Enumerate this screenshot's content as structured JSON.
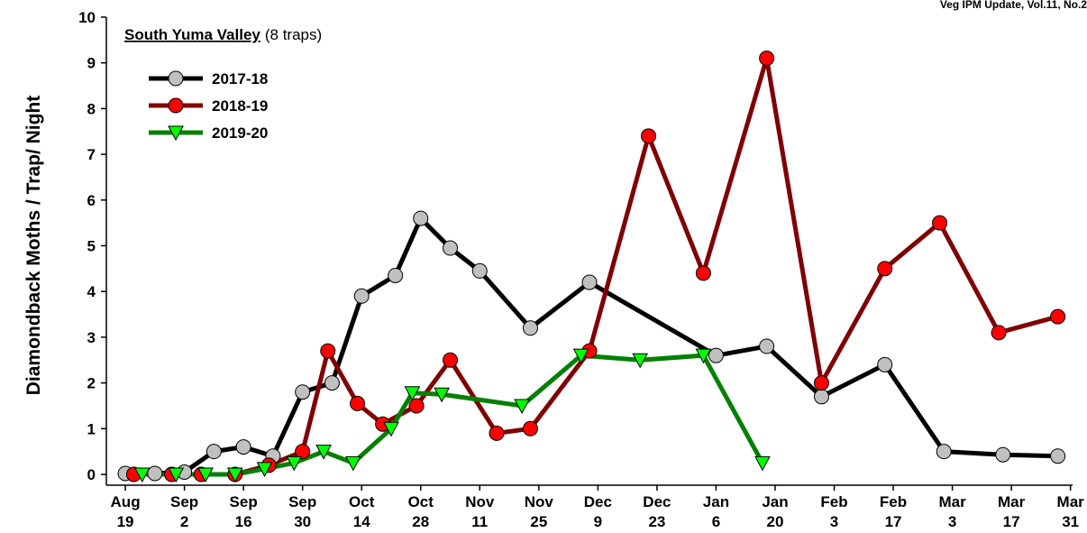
{
  "header": "Veg IPM Update, Vol.11, No.2",
  "chart_data": {
    "type": "line",
    "title": "South Yuma Valley",
    "subtitle": "(8 traps)",
    "y_label": "Diamondback Moths / Trap/ Night",
    "xlim": [
      -4.5,
      224.5
    ],
    "ylim": [
      0,
      10
    ],
    "xticks": [
      {
        "value": 0,
        "label": "Aug 19"
      },
      {
        "value": 14,
        "label": "Sep 2"
      },
      {
        "value": 28,
        "label": "Sep 16"
      },
      {
        "value": 42,
        "label": "Sep 30"
      },
      {
        "value": 56,
        "label": "Oct 14"
      },
      {
        "value": 70,
        "label": "Oct 28"
      },
      {
        "value": 84,
        "label": "Nov 11"
      },
      {
        "value": 98,
        "label": "Nov 25"
      },
      {
        "value": 112,
        "label": "Dec 9"
      },
      {
        "value": 126,
        "label": "Dec 23"
      },
      {
        "value": 140,
        "label": "Jan 6"
      },
      {
        "value": 154,
        "label": "Jan 20"
      },
      {
        "value": 168,
        "label": "Feb 3"
      },
      {
        "value": 182,
        "label": "Feb 17"
      },
      {
        "value": 196,
        "label": "Mar 3"
      },
      {
        "value": 210,
        "label": "Mar 17"
      },
      {
        "value": 224,
        "label": "Mar 31"
      }
    ],
    "yticks": [
      0,
      1,
      2,
      3,
      4,
      5,
      6,
      7,
      8,
      9,
      10
    ],
    "series": [
      {
        "name": "2017-18",
        "color": "#000000",
        "marker": "circle",
        "marker_color": "#c0c0c0",
        "x": [
          0,
          7,
          14,
          21,
          28,
          35,
          42,
          49,
          56,
          64,
          70,
          77,
          84,
          96,
          110,
          140,
          152,
          165,
          180,
          194,
          208,
          221
        ],
        "values": [
          0.02,
          0.02,
          0.05,
          0.5,
          0.6,
          0.4,
          1.8,
          2.0,
          3.9,
          4.35,
          5.6,
          4.95,
          4.45,
          3.2,
          4.2,
          2.6,
          2.8,
          1.7,
          2.4,
          0.5,
          0.43,
          0.4
        ]
      },
      {
        "name": "2018-19",
        "color": "#7f0000",
        "marker": "circle",
        "marker_color": "#ff0000",
        "x": [
          2,
          11,
          18,
          26,
          34,
          42,
          48,
          55,
          61,
          69,
          77,
          88,
          96,
          110,
          124,
          137,
          152,
          165,
          180,
          193,
          207,
          221
        ],
        "values": [
          0,
          0,
          0,
          0,
          0.2,
          0.5,
          2.7,
          1.55,
          1.1,
          1.5,
          2.5,
          0.9,
          1.0,
          2.7,
          7.4,
          4.4,
          9.1,
          2.0,
          4.5,
          5.5,
          3.1,
          3.45
        ]
      },
      {
        "name": "2019-20",
        "color": "#008000",
        "marker": "triangle-down",
        "marker_color": "#00ff00",
        "x": [
          4,
          12,
          19,
          26,
          33,
          40,
          47,
          54,
          63,
          68,
          75,
          94,
          108,
          122,
          137,
          151
        ],
        "values": [
          0,
          0,
          0,
          0,
          0.12,
          0.25,
          0.5,
          0.25,
          1.0,
          1.78,
          1.75,
          1.5,
          2.6,
          2.5,
          2.6,
          0.25
        ]
      }
    ],
    "legend": "upper-left"
  }
}
